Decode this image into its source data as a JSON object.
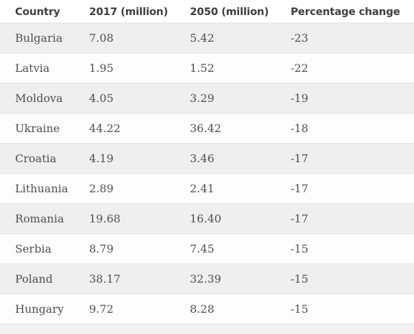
{
  "table": {
    "columns": [
      "Country",
      "2017 (million)",
      "2050 (million)",
      "Percentage change"
    ],
    "rows": [
      {
        "country": "Bulgaria",
        "y2017": "7.08",
        "y2050": "5.42",
        "change": "-23"
      },
      {
        "country": "Latvia",
        "y2017": "1.95",
        "y2050": "1.52",
        "change": "-22"
      },
      {
        "country": "Moldova",
        "y2017": "4.05",
        "y2050": "3.29",
        "change": "-19"
      },
      {
        "country": "Ukraine",
        "y2017": "44.22",
        "y2050": "36.42",
        "change": "-18"
      },
      {
        "country": "Croatia",
        "y2017": "4.19",
        "y2050": "3.46",
        "change": "-17"
      },
      {
        "country": "Lithuania",
        "y2017": "2.89",
        "y2050": "2.41",
        "change": "-17"
      },
      {
        "country": "Romania",
        "y2017": "19.68",
        "y2050": "16.40",
        "change": "-17"
      },
      {
        "country": "Serbia",
        "y2017": "8.79",
        "y2050": "7.45",
        "change": "-15"
      },
      {
        "country": "Poland",
        "y2017": "38.17",
        "y2050": "32.39",
        "change": "-15"
      },
      {
        "country": "Hungary",
        "y2017": "9.72",
        "y2050": "8.28",
        "change": "-15"
      }
    ]
  },
  "colors": {
    "header_text": "#3f3f3f",
    "body_text": "#4f4f4f",
    "stripe_row_bg": "#efefef",
    "plain_row_bg": "#fdfdfd",
    "row_border": "#e2e2e2"
  },
  "chart_data": {
    "type": "table",
    "title": "",
    "columns": [
      "Country",
      "2017 (million)",
      "2050 (million)",
      "Percentage change"
    ],
    "rows": [
      [
        "Bulgaria",
        7.08,
        5.42,
        -23
      ],
      [
        "Latvia",
        1.95,
        1.52,
        -22
      ],
      [
        "Moldova",
        4.05,
        3.29,
        -19
      ],
      [
        "Ukraine",
        44.22,
        36.42,
        -18
      ],
      [
        "Croatia",
        4.19,
        3.46,
        -17
      ],
      [
        "Lithuania",
        2.89,
        2.41,
        -17
      ],
      [
        "Romania",
        19.68,
        16.4,
        -17
      ],
      [
        "Serbia",
        8.79,
        7.45,
        -15
      ],
      [
        "Poland",
        38.17,
        32.39,
        -15
      ],
      [
        "Hungary",
        9.72,
        8.28,
        -15
      ]
    ],
    "layout": {
      "zebra_striping": true,
      "grid": "horizontal-only",
      "first_data_row_shaded": true
    }
  }
}
